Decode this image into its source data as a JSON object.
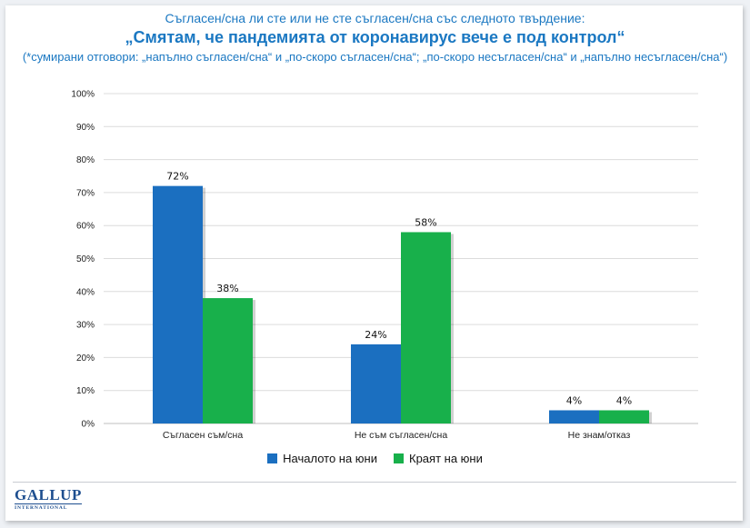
{
  "header": {
    "line1": "Съгласен/сна ли сте или не сте съгласен/сна със следното твърдение:",
    "line2": "„Смятам, че пандемията от коронавирус вече е под контрол“",
    "line3": "(*сумирани отговори: „напълно съгласен/сна“ и „по-скоро съгласен/сна“; „по-скоро несъгласен/сна“ и „напълно несъгласен/сна“)"
  },
  "colors": {
    "series1": "#1b6fc0",
    "series2": "#18b04b",
    "grid": "#dcdcdc"
  },
  "chart_data": {
    "type": "bar",
    "categories": [
      "Съгласен съм/сна",
      "Не съм съгласен/сна",
      "Не знам/отказ"
    ],
    "series": [
      {
        "name": "Началото на юни",
        "values": [
          72,
          24,
          4
        ]
      },
      {
        "name": "Краят на юни",
        "values": [
          38,
          58,
          4
        ]
      }
    ],
    "ylim": [
      0,
      100
    ],
    "yticks": [
      "0%",
      "10%",
      "20%",
      "30%",
      "40%",
      "50%",
      "60%",
      "70%",
      "80%",
      "90%",
      "100%"
    ],
    "value_labels": [
      [
        "72%",
        "24%",
        "4%"
      ],
      [
        "38%",
        "58%",
        "4%"
      ]
    ],
    "legend_position": "bottom"
  },
  "footer": {
    "logo_main": "GALLUP",
    "logo_sub": "INTERNATIONAL"
  }
}
